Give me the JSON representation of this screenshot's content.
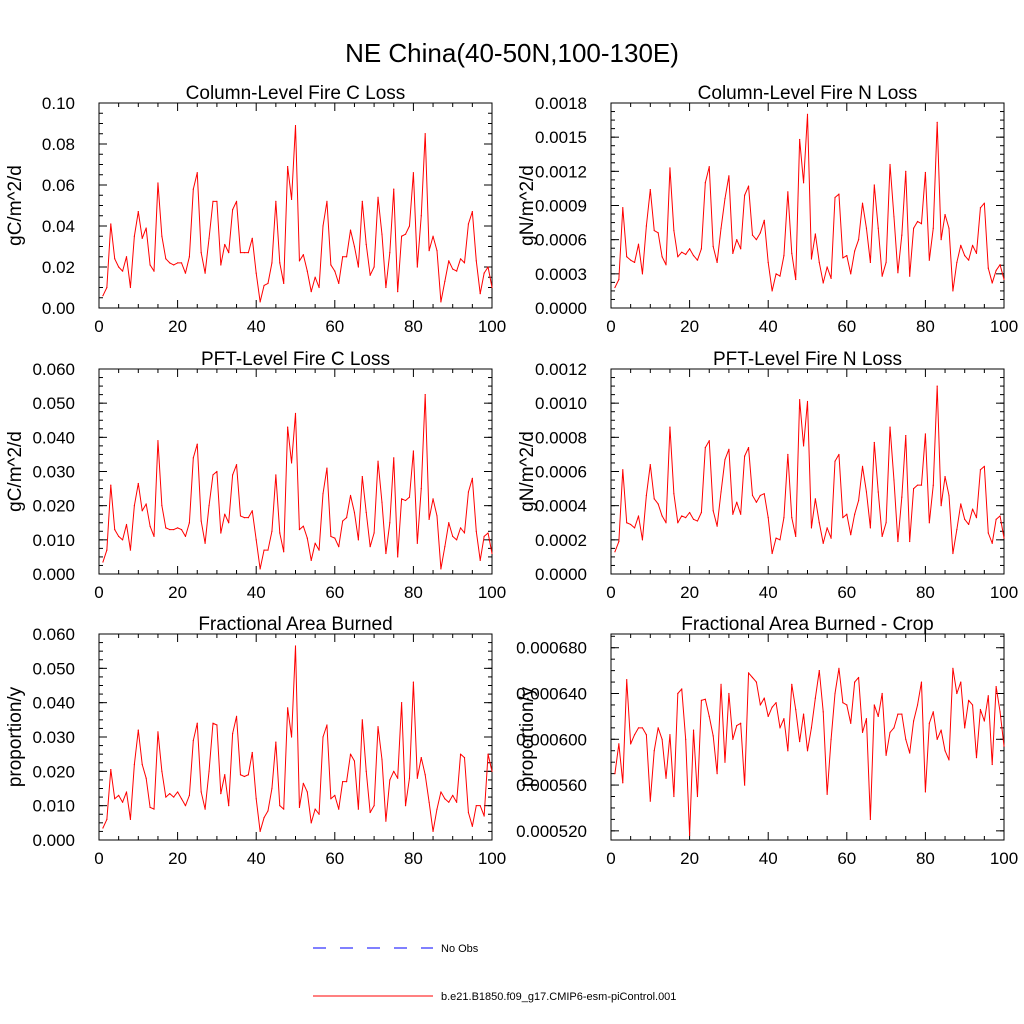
{
  "figure": {
    "title": "NE China(40-50N,100-130E)",
    "legend": [
      {
        "label": "No Obs",
        "color": "#0000ff",
        "dash": true
      },
      {
        "label": "b.e21.B1850.f09_g17.CMIP6-esm-piControl.001",
        "color": "#ff0000",
        "dash": false
      }
    ],
    "series_color": "#ff0000"
  },
  "chart_data": [
    {
      "type": "line",
      "title": "Column-Level Fire C Loss",
      "xlabel": "",
      "ylabel": "gC/m^2/d",
      "xlim": [
        0,
        100
      ],
      "ylim": [
        0,
        0.1
      ],
      "xticks": [
        "0",
        "20",
        "40",
        "60",
        "80",
        "100"
      ],
      "yticks": [
        "0.00",
        "0.02",
        "0.04",
        "0.06",
        "0.08",
        "0.10"
      ],
      "x_start": 1,
      "values": [
        0.006,
        0.01,
        0.041,
        0.024,
        0.02,
        0.018,
        0.025,
        0.01,
        0.035,
        0.047,
        0.034,
        0.039,
        0.021,
        0.018,
        0.061,
        0.035,
        0.024,
        0.022,
        0.021,
        0.022,
        0.022,
        0.017,
        0.025,
        0.058,
        0.066,
        0.027,
        0.017,
        0.034,
        0.052,
        0.052,
        0.021,
        0.031,
        0.027,
        0.048,
        0.052,
        0.027,
        0.027,
        0.027,
        0.034,
        0.017,
        0.003,
        0.011,
        0.012,
        0.022,
        0.052,
        0.022,
        0.012,
        0.069,
        0.053,
        0.089,
        0.023,
        0.026,
        0.018,
        0.008,
        0.015,
        0.01,
        0.04,
        0.052,
        0.021,
        0.018,
        0.012,
        0.025,
        0.025,
        0.038,
        0.03,
        0.02,
        0.052,
        0.031,
        0.016,
        0.02,
        0.054,
        0.036,
        0.01,
        0.027,
        0.058,
        0.008,
        0.035,
        0.036,
        0.04,
        0.066,
        0.02,
        0.045,
        0.085,
        0.028,
        0.035,
        0.028,
        0.003,
        0.013,
        0.023,
        0.019,
        0.018,
        0.024,
        0.022,
        0.041,
        0.047,
        0.023,
        0.007,
        0.017,
        0.02,
        0.01
      ]
    },
    {
      "type": "line",
      "title": "Column-Level Fire N Loss",
      "xlabel": "",
      "ylabel": "gN/m^2/d",
      "xlim": [
        0,
        100
      ],
      "ylim": [
        0,
        0.0018
      ],
      "xticks": [
        "0",
        "20",
        "40",
        "60",
        "80",
        "100"
      ],
      "yticks": [
        "0.0000",
        "0.0003",
        "0.0006",
        "0.0009",
        "0.0012",
        "0.0015",
        "0.0018"
      ],
      "x_start": 1,
      "values": [
        0.00018,
        0.00025,
        0.00088,
        0.00045,
        0.00042,
        0.0004,
        0.00056,
        0.0003,
        0.00072,
        0.00104,
        0.00068,
        0.00066,
        0.00045,
        0.00038,
        0.00123,
        0.00068,
        0.00045,
        0.00049,
        0.00047,
        0.00052,
        0.00046,
        0.00042,
        0.00052,
        0.0011,
        0.00124,
        0.00054,
        0.0004,
        0.0007,
        0.00096,
        0.00116,
        0.00048,
        0.0006,
        0.00052,
        0.00099,
        0.00107,
        0.00064,
        0.0006,
        0.00066,
        0.00077,
        0.0004,
        0.00015,
        0.0003,
        0.00028,
        0.00046,
        0.00102,
        0.00048,
        0.00025,
        0.00148,
        0.0011,
        0.0017,
        0.00043,
        0.00065,
        0.0004,
        0.00022,
        0.00036,
        0.00026,
        0.00097,
        0.001,
        0.00044,
        0.00046,
        0.0003,
        0.0005,
        0.0006,
        0.00092,
        0.0007,
        0.0004,
        0.00108,
        0.0007,
        0.00028,
        0.0004,
        0.00126,
        0.0008,
        0.00031,
        0.00064,
        0.0012,
        0.00028,
        0.0007,
        0.00076,
        0.00074,
        0.00119,
        0.00042,
        0.0007,
        0.00163,
        0.0006,
        0.00082,
        0.0007,
        0.00015,
        0.0004,
        0.00055,
        0.00046,
        0.00042,
        0.00055,
        0.00048,
        0.00088,
        0.00092,
        0.00035,
        0.00022,
        0.00033,
        0.00038,
        0.00025
      ]
    },
    {
      "type": "line",
      "title": "PFT-Level Fire C Loss",
      "xlabel": "",
      "ylabel": "gC/m^2/d",
      "xlim": [
        0,
        100
      ],
      "ylim": [
        0,
        0.06
      ],
      "xticks": [
        "0",
        "20",
        "40",
        "60",
        "80",
        "100"
      ],
      "yticks": [
        "0.000",
        "0.010",
        "0.020",
        "0.030",
        "0.040",
        "0.050",
        "0.060"
      ],
      "x_start": 1,
      "values": [
        0.0035,
        0.007,
        0.026,
        0.013,
        0.011,
        0.01,
        0.0145,
        0.007,
        0.02,
        0.0265,
        0.0185,
        0.0205,
        0.014,
        0.011,
        0.039,
        0.02,
        0.0135,
        0.013,
        0.013,
        0.0135,
        0.013,
        0.011,
        0.015,
        0.034,
        0.038,
        0.0155,
        0.009,
        0.02,
        0.029,
        0.03,
        0.012,
        0.0175,
        0.015,
        0.029,
        0.032,
        0.017,
        0.0165,
        0.0165,
        0.0185,
        0.01,
        0.0015,
        0.007,
        0.007,
        0.0125,
        0.029,
        0.012,
        0.0065,
        0.043,
        0.0325,
        0.047,
        0.013,
        0.014,
        0.0105,
        0.004,
        0.009,
        0.007,
        0.0235,
        0.031,
        0.011,
        0.0105,
        0.008,
        0.0155,
        0.0165,
        0.023,
        0.018,
        0.01,
        0.0285,
        0.018,
        0.008,
        0.012,
        0.033,
        0.021,
        0.006,
        0.015,
        0.034,
        0.005,
        0.022,
        0.0215,
        0.0225,
        0.036,
        0.009,
        0.025,
        0.0525,
        0.016,
        0.022,
        0.017,
        0.0015,
        0.008,
        0.015,
        0.011,
        0.01,
        0.0135,
        0.012,
        0.024,
        0.028,
        0.0125,
        0.004,
        0.011,
        0.012,
        0.006
      ]
    },
    {
      "type": "line",
      "title": "PFT-Level Fire N Loss",
      "xlabel": "",
      "ylabel": "gN/m^2/d",
      "xlim": [
        0,
        100
      ],
      "ylim": [
        0,
        0.0012
      ],
      "xticks": [
        "0",
        "20",
        "40",
        "60",
        "80",
        "100"
      ],
      "yticks": [
        "0.0000",
        "0.0002",
        "0.0004",
        "0.0006",
        "0.0008",
        "0.0010",
        "0.0012"
      ],
      "x_start": 1,
      "values": [
        0.00013,
        0.00019,
        0.00061,
        0.0003,
        0.00029,
        0.00027,
        0.00034,
        0.0002,
        0.00046,
        0.00064,
        0.00044,
        0.00041,
        0.00034,
        0.0003,
        0.00086,
        0.00047,
        0.0003,
        0.00034,
        0.00033,
        0.00036,
        0.00032,
        0.00031,
        0.00036,
        0.00074,
        0.00078,
        0.00037,
        0.00028,
        0.00048,
        0.00067,
        0.00073,
        0.00035,
        0.00042,
        0.00035,
        0.00069,
        0.00074,
        0.00046,
        0.00042,
        0.00046,
        0.00047,
        0.00033,
        0.00012,
        0.00021,
        0.0002,
        0.00033,
        0.0007,
        0.00033,
        0.00022,
        0.00102,
        0.00075,
        0.00101,
        0.00027,
        0.00044,
        0.0003,
        0.00018,
        0.00027,
        0.00021,
        0.00066,
        0.0007,
        0.00033,
        0.00035,
        0.00023,
        0.00035,
        0.00043,
        0.00063,
        0.00048,
        0.00027,
        0.00077,
        0.00048,
        0.00022,
        0.0003,
        0.00086,
        0.00055,
        0.00019,
        0.00045,
        0.00081,
        0.00019,
        0.0005,
        0.00052,
        0.00052,
        0.00082,
        0.0003,
        0.00052,
        0.0011,
        0.0004,
        0.00057,
        0.00046,
        0.00012,
        0.00026,
        0.00041,
        0.00032,
        0.00029,
        0.00038,
        0.00033,
        0.00061,
        0.00063,
        0.00024,
        0.00018,
        0.00032,
        0.00034,
        0.00021
      ]
    },
    {
      "type": "line",
      "title": "Fractional Area Burned",
      "xlabel": "",
      "ylabel": "proportion/y",
      "xlim": [
        0,
        100
      ],
      "ylim": [
        0,
        0.06
      ],
      "xticks": [
        "0",
        "20",
        "40",
        "60",
        "80",
        "100"
      ],
      "yticks": [
        "0.000",
        "0.010",
        "0.020",
        "0.030",
        "0.040",
        "0.050",
        "0.060"
      ],
      "x_start": 1,
      "values": [
        0.0035,
        0.006,
        0.0205,
        0.012,
        0.013,
        0.011,
        0.014,
        0.006,
        0.022,
        0.032,
        0.022,
        0.018,
        0.0095,
        0.009,
        0.0315,
        0.02,
        0.0125,
        0.0135,
        0.0125,
        0.014,
        0.012,
        0.01,
        0.013,
        0.029,
        0.034,
        0.014,
        0.009,
        0.02,
        0.034,
        0.0335,
        0.0135,
        0.019,
        0.01,
        0.031,
        0.036,
        0.019,
        0.0185,
        0.019,
        0.0255,
        0.012,
        0.0025,
        0.0065,
        0.0085,
        0.015,
        0.0285,
        0.01,
        0.009,
        0.0385,
        0.03,
        0.0565,
        0.0095,
        0.0165,
        0.014,
        0.005,
        0.009,
        0.0075,
        0.03,
        0.0335,
        0.012,
        0.013,
        0.009,
        0.017,
        0.017,
        0.025,
        0.023,
        0.009,
        0.035,
        0.02,
        0.008,
        0.01,
        0.033,
        0.0235,
        0.0055,
        0.0175,
        0.02,
        0.018,
        0.04,
        0.01,
        0.018,
        0.046,
        0.018,
        0.024,
        0.019,
        0.011,
        0.0025,
        0.009,
        0.014,
        0.012,
        0.011,
        0.013,
        0.011,
        0.025,
        0.024,
        0.008,
        0.004,
        0.01,
        0.01,
        0.007,
        0.025,
        0.02
      ]
    },
    {
      "type": "line",
      "title": "Fractional Area Burned - Crop",
      "xlabel": "",
      "ylabel": "proportion/y",
      "xlim": [
        0,
        100
      ],
      "ylim": [
        0.000512,
        0.000692
      ],
      "xticks": [
        "0",
        "20",
        "40",
        "60",
        "80",
        "100"
      ],
      "yticks": [
        "0.000520",
        "0.000560",
        "0.000600",
        "0.000640",
        "0.000680"
      ],
      "ytick_values": [
        0.00052,
        0.00056,
        0.0006,
        0.00064,
        0.00068
      ],
      "x_start": 1,
      "values": [
        0.00057,
        0.000596,
        0.000562,
        0.000652,
        0.000596,
        0.000604,
        0.00061,
        0.00061,
        0.000604,
        0.000546,
        0.00059,
        0.00061,
        0.0006,
        0.000566,
        0.000604,
        0.00055,
        0.00064,
        0.000644,
        0.0006,
        0.000516,
        0.000608,
        0.00055,
        0.000634,
        0.000635,
        0.00062,
        0.000603,
        0.00057,
        0.000648,
        0.00058,
        0.00064,
        0.0006,
        0.000612,
        0.000614,
        0.00056,
        0.000658,
        0.000654,
        0.00065,
        0.00063,
        0.000636,
        0.00062,
        0.000628,
        0.000632,
        0.00061,
        0.000618,
        0.00059,
        0.000648,
        0.000626,
        0.000598,
        0.000622,
        0.00059,
        0.00061,
        0.000636,
        0.00066,
        0.000624,
        0.000552,
        0.0006,
        0.00064,
        0.000662,
        0.000632,
        0.00063,
        0.000614,
        0.00065,
        0.000654,
        0.000606,
        0.000618,
        0.00053,
        0.00063,
        0.00062,
        0.00064,
        0.000586,
        0.000606,
        0.00061,
        0.000622,
        0.000622,
        0.0006,
        0.000588,
        0.000616,
        0.00063,
        0.00065,
        0.000554,
        0.000614,
        0.000624,
        0.0006,
        0.000608,
        0.00059,
        0.000582,
        0.000662,
        0.00064,
        0.00065,
        0.00061,
        0.000634,
        0.00063,
        0.000584,
        0.000626,
        0.000616,
        0.000638,
        0.000578,
        0.000646,
        0.000624,
        0.000594
      ]
    }
  ]
}
